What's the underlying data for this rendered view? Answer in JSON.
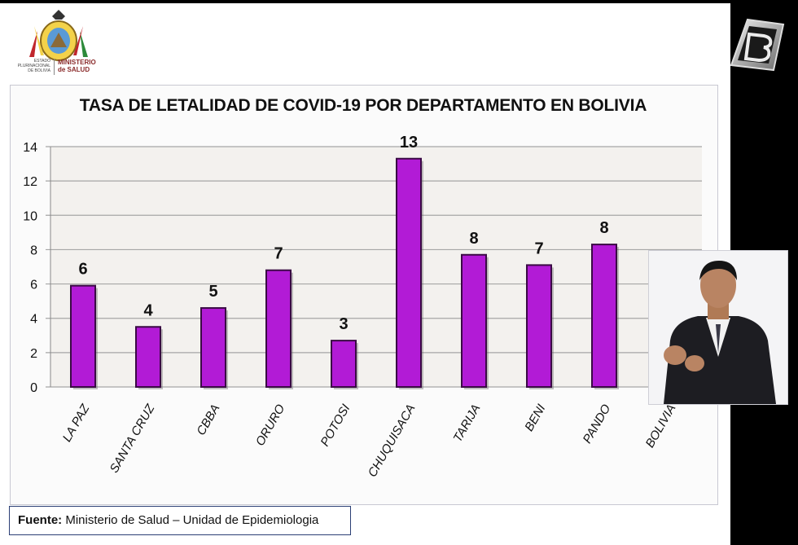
{
  "header": {
    "logo_left_text": "ESTADO PLURINACIONAL DE BOLIVIA",
    "logo_right_line1": "MINISTERIO",
    "logo_right_line2": "de SALUD"
  },
  "colors": {
    "bar_fill": "#b21bd6",
    "bar_stroke": "#3a0a44",
    "grid": "#a6a6a6",
    "source_border": "#2b3f75"
  },
  "chart_data": {
    "type": "bar",
    "title": "TASA DE  LETALIDAD DE COVID-19  POR DEPARTAMENTO  EN BOLIVIA",
    "xlabel": "",
    "ylabel": "",
    "categories": [
      "LA PAZ",
      "SANTA CRUZ",
      "CBBA",
      "ORURO",
      "POTOSI",
      "CHUQUISACA",
      "TARIJA",
      "BENI",
      "PANDO",
      "BOLIVIA"
    ],
    "values": [
      5.9,
      3.5,
      4.6,
      6.8,
      2.7,
      13.3,
      7.7,
      7.1,
      8.3,
      null
    ],
    "data_labels": [
      "6",
      "4",
      "5",
      "7",
      "3",
      "13",
      "8",
      "7",
      "8",
      ""
    ],
    "ylim": [
      0,
      14
    ],
    "yticks": [
      0,
      2,
      4,
      6,
      8,
      10,
      12,
      14
    ],
    "grid": true,
    "legend": "none"
  },
  "source": {
    "label": "Fuente:",
    "text": " Ministerio de Salud – Unidad de Epidemiologia"
  },
  "overlay": {
    "channel_logo_icon": "b-channel-logo-icon",
    "interpreter": "sign-language-interpreter"
  }
}
